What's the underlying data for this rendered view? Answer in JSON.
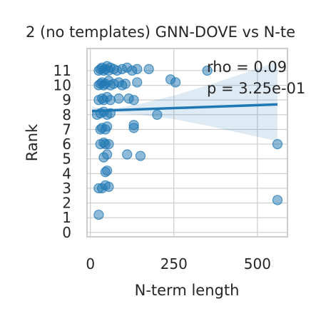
{
  "chart_data": {
    "type": "scatter",
    "title": "2 (no templates) GNN-DOVE vs N-te",
    "xlabel": "N-term length",
    "ylabel": "Rank",
    "xlim": [
      -10,
      590
    ],
    "ylim": [
      -0.3,
      12.5
    ],
    "xticks": [
      {
        "value": 0,
        "label": "0"
      },
      {
        "value": 250,
        "label": "250"
      },
      {
        "value": 500,
        "label": "500"
      }
    ],
    "yticks": [
      {
        "value": 0,
        "label": "0"
      },
      {
        "value": 1,
        "label": "1"
      },
      {
        "value": 2,
        "label": "2"
      },
      {
        "value": 3,
        "label": "3"
      },
      {
        "value": 4,
        "label": "4"
      },
      {
        "value": 5,
        "label": "5"
      },
      {
        "value": 6,
        "label": "6"
      },
      {
        "value": 7,
        "label": "7"
      },
      {
        "value": 8,
        "label": "8"
      },
      {
        "value": 9,
        "label": "9"
      },
      {
        "value": 10,
        "label": "10"
      },
      {
        "value": 11,
        "label": "11"
      }
    ],
    "grid": true,
    "annotations": [
      "rho = 0.09",
      "p = 3.25e-01"
    ],
    "point_color": "#1f77b4",
    "regression": {
      "x": [
        5,
        560
      ],
      "y": [
        8.25,
        8.7
      ]
    },
    "ci_band": {
      "x": [
        5,
        40,
        80,
        150,
        250,
        350,
        450,
        560
      ],
      "upper": [
        8.55,
        8.35,
        8.45,
        8.75,
        9.3,
        10.0,
        10.75,
        11.6
      ],
      "lower": [
        7.95,
        8.1,
        8.1,
        8.0,
        7.7,
        7.25,
        6.75,
        6.2
      ]
    },
    "points": [
      [
        25,
        1.2
      ],
      [
        560,
        2.2
      ],
      [
        25,
        3.0
      ],
      [
        35,
        3.0
      ],
      [
        45,
        3.2
      ],
      [
        55,
        3.1
      ],
      [
        45,
        4.1
      ],
      [
        50,
        4.2
      ],
      [
        40,
        5.1
      ],
      [
        50,
        5.3
      ],
      [
        110,
        5.3
      ],
      [
        150,
        5.2
      ],
      [
        30,
        6.0
      ],
      [
        40,
        6.1
      ],
      [
        45,
        6.0
      ],
      [
        55,
        6.0
      ],
      [
        560,
        6.0
      ],
      [
        30,
        7.0
      ],
      [
        35,
        7.1
      ],
      [
        45,
        7.0
      ],
      [
        50,
        7.2
      ],
      [
        130,
        7.3
      ],
      [
        130,
        7.1
      ],
      [
        20,
        8.0
      ],
      [
        30,
        8.1
      ],
      [
        40,
        8.2
      ],
      [
        50,
        8.0
      ],
      [
        60,
        8.1
      ],
      [
        200,
        8.0
      ],
      [
        25,
        9.0
      ],
      [
        35,
        9.1
      ],
      [
        40,
        9.0
      ],
      [
        50,
        9.2
      ],
      [
        60,
        9.0
      ],
      [
        85,
        9.1
      ],
      [
        115,
        9.1
      ],
      [
        130,
        9.0
      ],
      [
        25,
        10.0
      ],
      [
        30,
        10.1
      ],
      [
        35,
        10.2
      ],
      [
        40,
        10.0
      ],
      [
        45,
        10.1
      ],
      [
        55,
        10.3
      ],
      [
        60,
        10.0
      ],
      [
        70,
        10.1
      ],
      [
        85,
        10.2
      ],
      [
        95,
        10.0
      ],
      [
        105,
        10.1
      ],
      [
        140,
        10.2
      ],
      [
        240,
        10.4
      ],
      [
        255,
        10.2
      ],
      [
        25,
        11.0
      ],
      [
        30,
        11.1
      ],
      [
        35,
        11.2
      ],
      [
        40,
        11.0
      ],
      [
        45,
        11.1
      ],
      [
        50,
        11.3
      ],
      [
        55,
        11.0
      ],
      [
        60,
        11.2
      ],
      [
        70,
        11.1
      ],
      [
        80,
        11.0
      ],
      [
        95,
        11.1
      ],
      [
        110,
        11.2
      ],
      [
        125,
        11.0
      ],
      [
        140,
        11.1
      ],
      [
        175,
        11.1
      ],
      [
        350,
        11.0
      ]
    ]
  }
}
